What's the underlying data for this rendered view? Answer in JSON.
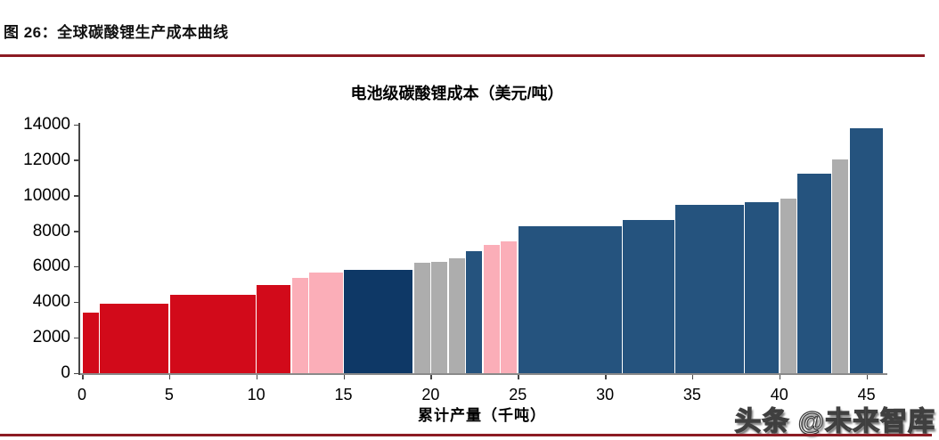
{
  "header": {
    "figure_label": "图 26：全球碳酸锂生产成本曲线"
  },
  "accent": {
    "rule_color": "#8C1B23"
  },
  "watermark": {
    "text": "头条 @未来智库"
  },
  "chart_data": {
    "type": "bar",
    "variant": "variable-width-cost-curve",
    "title": "电池级碳酸锂成本（美元/吨）",
    "xlabel": "累计产量（千吨）",
    "ylabel": "",
    "xlim": [
      0,
      46.2
    ],
    "ylim": [
      0,
      14000
    ],
    "x_ticks": [
      0,
      5,
      10,
      15,
      20,
      25,
      30,
      35,
      40,
      45
    ],
    "y_ticks": [
      0,
      2000,
      4000,
      6000,
      8000,
      10000,
      12000,
      14000
    ],
    "grid": false,
    "legend": false,
    "colors": {
      "red": "#D20A1A",
      "pink": "#FBAEB8",
      "dark_navy": "#0E3866",
      "steel_blue": "#25537E",
      "gray": "#ADADAD"
    },
    "bars": [
      {
        "x_start": 0,
        "x_end": 1,
        "value": 3400,
        "color": "red"
      },
      {
        "x_start": 1,
        "x_end": 5,
        "value": 3900,
        "color": "red"
      },
      {
        "x_start": 5,
        "x_end": 10,
        "value": 4400,
        "color": "red"
      },
      {
        "x_start": 10,
        "x_end": 12,
        "value": 4950,
        "color": "red"
      },
      {
        "x_start": 12,
        "x_end": 13,
        "value": 5350,
        "color": "pink"
      },
      {
        "x_start": 13,
        "x_end": 15,
        "value": 5650,
        "color": "pink"
      },
      {
        "x_start": 15,
        "x_end": 19,
        "value": 5800,
        "color": "dark_navy"
      },
      {
        "x_start": 19,
        "x_end": 20,
        "value": 6200,
        "color": "gray"
      },
      {
        "x_start": 20,
        "x_end": 21,
        "value": 6250,
        "color": "gray"
      },
      {
        "x_start": 21,
        "x_end": 22,
        "value": 6450,
        "color": "gray"
      },
      {
        "x_start": 22,
        "x_end": 23,
        "value": 6900,
        "color": "steel_blue"
      },
      {
        "x_start": 23,
        "x_end": 24,
        "value": 7250,
        "color": "pink"
      },
      {
        "x_start": 24,
        "x_end": 25,
        "value": 7450,
        "color": "pink"
      },
      {
        "x_start": 25,
        "x_end": 31,
        "value": 8300,
        "color": "steel_blue"
      },
      {
        "x_start": 31,
        "x_end": 34,
        "value": 8650,
        "color": "steel_blue"
      },
      {
        "x_start": 34,
        "x_end": 38,
        "value": 9500,
        "color": "steel_blue"
      },
      {
        "x_start": 38,
        "x_end": 40,
        "value": 9650,
        "color": "steel_blue"
      },
      {
        "x_start": 40,
        "x_end": 41,
        "value": 9850,
        "color": "gray"
      },
      {
        "x_start": 41,
        "x_end": 43,
        "value": 11250,
        "color": "steel_blue"
      },
      {
        "x_start": 43,
        "x_end": 44,
        "value": 12050,
        "color": "gray"
      },
      {
        "x_start": 44,
        "x_end": 46,
        "value": 13800,
        "color": "steel_blue"
      }
    ]
  }
}
